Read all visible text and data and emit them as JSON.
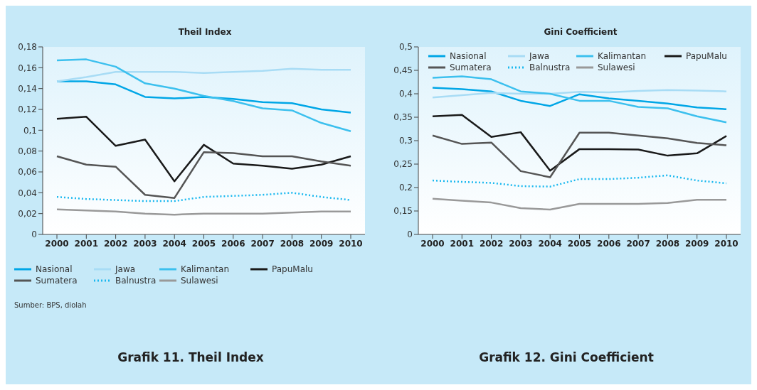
{
  "chart_data": [
    {
      "type": "line",
      "title": "Theil Index",
      "categories": [
        "2000",
        "2001",
        "2002",
        "2003",
        "2004",
        "2005",
        "2006",
        "2007",
        "2008",
        "2009",
        "2010"
      ],
      "series": [
        {
          "name": "Nasional",
          "color": "#00a6e6",
          "line_style": "solid",
          "values": [
            0.147,
            0.147,
            0.144,
            0.132,
            0.1305,
            0.132,
            0.13,
            0.127,
            0.126,
            0.12,
            0.117
          ]
        },
        {
          "name": "Jawa",
          "color": "#a8dcf5",
          "line_style": "solid",
          "values": [
            0.147,
            0.151,
            0.156,
            0.156,
            0.156,
            0.155,
            0.156,
            0.157,
            0.159,
            0.158,
            0.158
          ]
        },
        {
          "name": "Kalimantan",
          "color": "#3cc0ee",
          "line_style": "solid",
          "values": [
            0.167,
            0.168,
            0.161,
            0.145,
            0.14,
            0.133,
            0.128,
            0.121,
            0.119,
            0.107,
            0.099
          ]
        },
        {
          "name": "PapuMalu",
          "color": "#1a1a1a",
          "line_style": "solid",
          "values": [
            0.111,
            0.113,
            0.085,
            0.091,
            0.051,
            0.086,
            0.068,
            0.066,
            0.063,
            0.067,
            0.075
          ]
        },
        {
          "name": "Sumatera",
          "color": "#555555",
          "line_style": "solid",
          "values": [
            0.075,
            0.067,
            0.065,
            0.038,
            0.035,
            0.079,
            0.078,
            0.075,
            0.075,
            0.07,
            0.066
          ]
        },
        {
          "name": "Balnustra",
          "color": "#1ab8ef",
          "line_style": "dotted",
          "values": [
            0.036,
            0.034,
            0.033,
            0.032,
            0.032,
            0.036,
            0.037,
            0.038,
            0.04,
            0.036,
            0.033
          ]
        },
        {
          "name": "Sulawesi",
          "color": "#999999",
          "line_style": "solid",
          "values": [
            0.024,
            0.023,
            0.022,
            0.02,
            0.019,
            0.02,
            0.02,
            0.02,
            0.021,
            0.022,
            0.022
          ]
        }
      ],
      "ylim": [
        0,
        0.18
      ],
      "yticks": [
        0,
        {
          "value": 0.02,
          "label": "0,02"
        },
        {
          "value": 0.04,
          "label": "0,04"
        },
        {
          "value": 0.06,
          "label": "0,06"
        },
        {
          "value": 0.08,
          "label": "0,08"
        },
        {
          "value": 0.1,
          "label": "0,1"
        },
        {
          "value": 0.12,
          "label": "0,12"
        },
        {
          "value": 0.14,
          "label": "0,14"
        },
        {
          "value": 0.16,
          "label": "0,16"
        },
        {
          "value": 0.18,
          "label": "0,18"
        }
      ],
      "legend": "bottom",
      "marker": "none",
      "annotations": [
        "Sumber: BPS, diolah",
        "Grafik 11. Theil Index"
      ]
    },
    {
      "type": "line",
      "title": "Gini Coefficient",
      "categories": [
        "2000",
        "2001",
        "2002",
        "2003",
        "2004",
        "2005",
        "2006",
        "2007",
        "2008",
        "2009",
        "2010"
      ],
      "series": [
        {
          "name": "Nasional",
          "color": "#00a6e6",
          "line_style": "solid",
          "values": [
            0.413,
            0.41,
            0.405,
            0.385,
            0.374,
            0.399,
            0.39,
            0.385,
            0.379,
            0.371,
            0.367
          ]
        },
        {
          "name": "Jawa",
          "color": "#a8dcf5",
          "line_style": "solid",
          "values": [
            0.392,
            0.397,
            0.402,
            0.4,
            0.4,
            0.404,
            0.403,
            0.406,
            0.408,
            0.407,
            0.405
          ]
        },
        {
          "name": "Kalimantan",
          "color": "#3cc0ee",
          "line_style": "solid",
          "values": [
            0.434,
            0.437,
            0.431,
            0.405,
            0.4,
            0.385,
            0.385,
            0.372,
            0.369,
            0.352,
            0.339
          ]
        },
        {
          "name": "PapuMalu",
          "color": "#1a1a1a",
          "line_style": "solid",
          "values": [
            0.352,
            0.355,
            0.308,
            0.318,
            0.236,
            0.282,
            0.282,
            0.281,
            0.268,
            0.273,
            0.31
          ]
        },
        {
          "name": "Sumatera",
          "color": "#555555",
          "line_style": "solid",
          "values": [
            0.311,
            0.293,
            0.296,
            0.235,
            0.222,
            0.317,
            0.317,
            0.311,
            0.305,
            0.295,
            0.29
          ]
        },
        {
          "name": "Balnustra",
          "color": "#1ab8ef",
          "line_style": "dotted",
          "values": [
            0.215,
            0.212,
            0.21,
            0.203,
            0.202,
            0.218,
            0.218,
            0.221,
            0.226,
            0.215,
            0.209
          ]
        },
        {
          "name": "Sulawesi",
          "color": "#999999",
          "line_style": "solid",
          "values": [
            0.176,
            0.172,
            0.168,
            0.156,
            0.153,
            0.165,
            0.165,
            0.165,
            0.167,
            0.174,
            0.174
          ]
        }
      ],
      "ylim": [
        0.1,
        0.5
      ],
      "yticks": [
        {
          "value": 0.1,
          "label": "0"
        },
        {
          "value": 0.15,
          "label": "0,15"
        },
        {
          "value": 0.2,
          "label": "0,2"
        },
        {
          "value": 0.25,
          "label": "0,25"
        },
        {
          "value": 0.3,
          "label": "0,3"
        },
        {
          "value": 0.35,
          "label": "0,35"
        },
        {
          "value": 0.4,
          "label": "0,4"
        },
        {
          "value": 0.45,
          "label": "0,45"
        },
        {
          "value": 0.5,
          "label": "0,5"
        }
      ],
      "legend": "top",
      "marker": "none",
      "annotations": [
        "Grafik 12. Gini Coefficient"
      ]
    }
  ]
}
